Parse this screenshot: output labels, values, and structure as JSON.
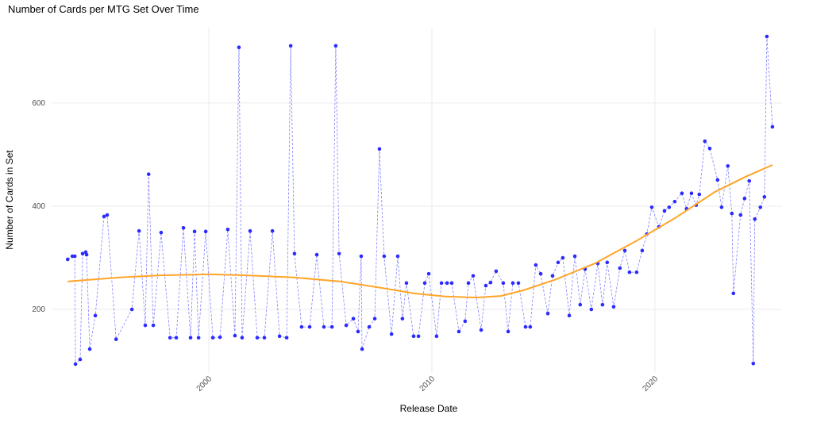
{
  "chart_data": {
    "type": "line",
    "title": "Number of Cards per MTG Set Over Time",
    "x_label": "Release Date",
    "y_label": "Number of Cards in Set",
    "xlim": [
      1992.95,
      2025.7
    ],
    "xticks": [
      2000,
      2010,
      2020
    ],
    "ylim": [
      77,
      746
    ],
    "yticks": [
      200,
      400,
      600
    ],
    "grid": true,
    "series": [
      {
        "style": "dashed-points",
        "color": "#2b2bff",
        "x": [
          1993.67,
          1993.88,
          1993.99,
          1994.02,
          1994.23,
          1994.34,
          1994.48,
          1994.52,
          1994.66,
          1994.91,
          1995.3,
          1995.44,
          1995.84,
          1996.55,
          1996.87,
          1997.15,
          1997.3,
          1997.51,
          1997.86,
          1998.26,
          1998.54,
          1998.86,
          1999.18,
          1999.36,
          1999.54,
          1999.86,
          2000.18,
          2000.5,
          2000.85,
          2001.17,
          2001.35,
          2001.49,
          2001.85,
          2002.17,
          2002.49,
          2002.85,
          2003.17,
          2003.49,
          2003.67,
          2003.84,
          2004.16,
          2004.52,
          2004.84,
          2005.16,
          2005.52,
          2005.69,
          2005.84,
          2006.16,
          2006.48,
          2006.69,
          2006.83,
          2006.87,
          2007.19,
          2007.44,
          2007.65,
          2007.86,
          2008.19,
          2008.47,
          2008.68,
          2008.86,
          2009.18,
          2009.4,
          2009.68,
          2009.86,
          2010.21,
          2010.43,
          2010.68,
          2010.89,
          2011.21,
          2011.49,
          2011.64,
          2011.85,
          2012.21,
          2012.42,
          2012.63,
          2012.88,
          2013.2,
          2013.42,
          2013.63,
          2013.88,
          2014.2,
          2014.41,
          2014.66,
          2014.88,
          2015.2,
          2015.41,
          2015.66,
          2015.87,
          2016.16,
          2016.41,
          2016.65,
          2016.87,
          2017.15,
          2017.44,
          2017.65,
          2017.86,
          2018.15,
          2018.43,
          2018.65,
          2018.86,
          2019.18,
          2019.43,
          2019.64,
          2019.86,
          2020.18,
          2020.43,
          2020.64,
          2020.89,
          2021.21,
          2021.42,
          2021.64,
          2021.85,
          2021.99,
          2022.24,
          2022.46,
          2022.81,
          2022.99,
          2023.27,
          2023.45,
          2023.52,
          2023.84,
          2024.02,
          2024.23,
          2024.41,
          2024.48,
          2024.73,
          2024.91,
          2025.02,
          2025.27
        ],
        "values": [
          297,
          303,
          303,
          94,
          103,
          308,
          311,
          306,
          123,
          188,
          380,
          383,
          142,
          200,
          352,
          169,
          462,
          169,
          349,
          145,
          145,
          358,
          145,
          351,
          145,
          351,
          145,
          146,
          355,
          149,
          708,
          145,
          352,
          145,
          145,
          352,
          148,
          145,
          711,
          308,
          166,
          166,
          306,
          166,
          166,
          711,
          308,
          169,
          182,
          157,
          303,
          123,
          166,
          182,
          511,
          303,
          152,
          303,
          182,
          251,
          148,
          148,
          251,
          269,
          148,
          251,
          251,
          251,
          157,
          177,
          251,
          265,
          160,
          246,
          252,
          274,
          251,
          157,
          251,
          251,
          166,
          166,
          286,
          269,
          192,
          265,
          291,
          300,
          188,
          303,
          209,
          278,
          200,
          289,
          209,
          291,
          205,
          280,
          314,
          272,
          272,
          314,
          346,
          398,
          360,
          391,
          398,
          409,
          425,
          395,
          425,
          402,
          423,
          526,
          512,
          451,
          398,
          478,
          386,
          231,
          383,
          415,
          449,
          95,
          375,
          398,
          418,
          729,
          554
        ]
      },
      {
        "style": "smooth",
        "color": "#ffa526",
        "x": [
          1993.67,
          1996.0,
          1997.8,
          2000.0,
          2001.7,
          2003.8,
          2005.9,
          2007.7,
          2009.2,
          2010.6,
          2012.0,
          2013.1,
          2014.1,
          2015.55,
          2017.3,
          2019.1,
          2020.9,
          2022.7,
          2024.1,
          2025.27
        ],
        "values": [
          254,
          262,
          266,
          268,
          266,
          262,
          254,
          242,
          231,
          225,
          223,
          226,
          237,
          258,
          289,
          331,
          377,
          428,
          458,
          480
        ]
      }
    ]
  }
}
